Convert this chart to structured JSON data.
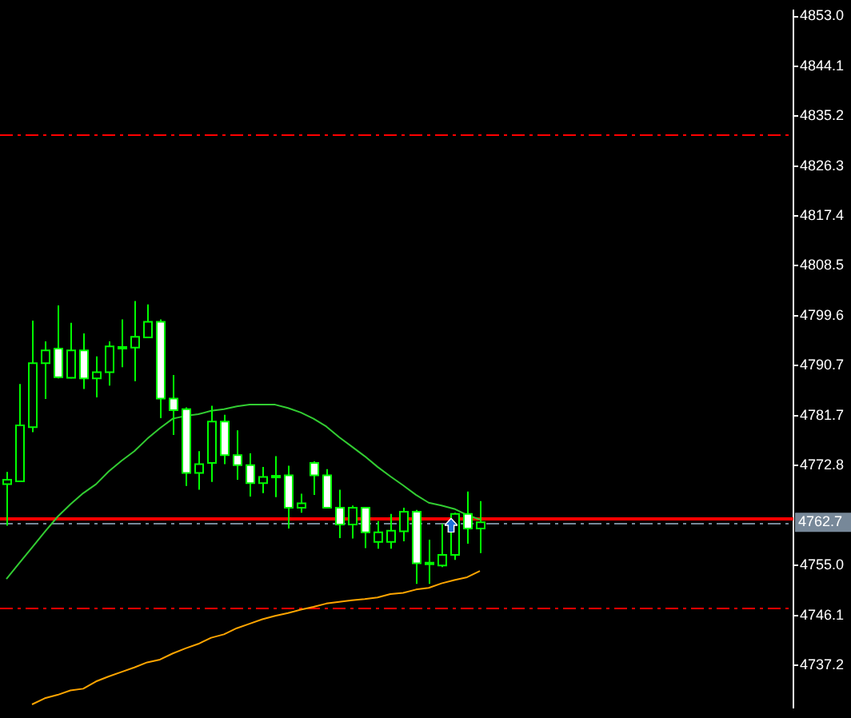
{
  "chart_data": {
    "type": "candlestick",
    "color": "#00ff00",
    "colors": [
      "#000000",
      "#000000",
      "#000000",
      "#000000",
      "#ffffff",
      "#000000",
      "#ffffff",
      "#000000",
      "#000000",
      "#ffffff",
      "#000000",
      "#000000",
      "#ffffff",
      "#ffffff",
      "#ffffff",
      "#000000",
      "#000000",
      "#ffffff",
      "#ffffff",
      "#ffffff",
      "#000000",
      "#000000",
      "#ffffff",
      "#000000",
      "#ffffff",
      "#ffffff",
      "#ffffff",
      "#000000",
      "#ffffff",
      "#000000",
      "#000000",
      "#000000",
      "#ffffff",
      "#000000",
      "#000000",
      "#000000",
      "#ffffff",
      "#000000",
      null,
      null,
      null,
      null,
      null,
      null,
      null,
      null,
      null,
      null,
      null,
      null,
      null,
      null,
      null,
      null,
      null,
      null,
      null,
      null,
      null,
      null,
      null,
      null
    ],
    "categories": [
      null,
      null,
      null,
      null,
      null,
      null,
      null,
      null,
      null,
      null,
      null,
      null,
      null,
      null,
      null,
      null,
      null,
      null,
      null,
      null,
      null,
      null,
      null,
      null,
      null,
      null,
      null,
      null,
      null,
      null,
      null,
      null,
      null,
      null,
      null,
      null,
      null,
      null,
      null,
      null,
      null,
      null,
      null,
      null,
      null,
      null,
      null,
      null,
      null,
      null,
      null,
      null,
      null,
      null,
      null,
      null,
      null,
      null,
      null,
      null,
      null,
      null
    ],
    "ohlc": [
      [
        4769.5,
        4771.7,
        4762.1,
        4770.3
      ],
      [
        4770.0,
        4787.4,
        4770.0,
        4780.0
      ],
      [
        4779.7,
        4798.7,
        4778.8,
        4791.1
      ],
      [
        4791.1,
        4795.0,
        4784.7,
        4793.4
      ],
      [
        4793.7,
        4801.4,
        4788.4,
        4788.6
      ],
      [
        4788.5,
        4798.3,
        4788.4,
        4793.4
      ],
      [
        4793.4,
        4796.4,
        4786.5,
        4788.4
      ],
      [
        4788.4,
        4792.3,
        4785.0,
        4789.5
      ],
      [
        4789.5,
        4795.0,
        4787.1,
        4794.1
      ],
      [
        4794.0,
        4798.9,
        4790.4,
        4793.8
      ],
      [
        4793.9,
        4802.2,
        4787.9,
        4795.8
      ],
      [
        4795.7,
        4801.6,
        4795.7,
        4798.5
      ],
      [
        4798.5,
        4798.9,
        4781.3,
        4784.8
      ],
      [
        4784.8,
        4789.0,
        4778.3,
        4782.7
      ],
      [
        4782.9,
        4783.2,
        4769.2,
        4771.5
      ],
      [
        4771.5,
        4775.4,
        4768.5,
        4773.1
      ],
      [
        4773.3,
        4783.5,
        4769.9,
        4780.7
      ],
      [
        4780.7,
        4781.9,
        4773.1,
        4774.7
      ],
      [
        4774.7,
        4779.1,
        4770.3,
        4772.9
      ],
      [
        4772.9,
        4775.0,
        4767.3,
        4769.7
      ],
      [
        4769.7,
        4772.6,
        4767.9,
        4770.8
      ],
      [
        4770.9,
        4774.5,
        4767.2,
        4771.0
      ],
      [
        4771.1,
        4772.8,
        4761.6,
        4765.3
      ],
      [
        4765.3,
        4767.8,
        4764.4,
        4766.1
      ],
      [
        4773.3,
        4773.6,
        4767.6,
        4771.1
      ],
      [
        4771.1,
        4772.2,
        4765.3,
        4765.3
      ],
      [
        4765.3,
        4768.5,
        4759.9,
        4762.3
      ],
      [
        4762.3,
        4765.7,
        4759.8,
        4765.3
      ],
      [
        4765.3,
        4765.3,
        4758.1,
        4760.9
      ],
      [
        4759.2,
        4762.9,
        4758.0,
        4760.9
      ],
      [
        4759.2,
        4764.2,
        4758.0,
        4761.2
      ],
      [
        4761.1,
        4765.3,
        4759.3,
        4764.6
      ],
      [
        4764.6,
        4764.9,
        4751.7,
        4755.4
      ],
      [
        4755.4,
        4759.6,
        4751.7,
        4755.5
      ],
      [
        4755.0,
        4762.4,
        4754.7,
        4756.9
      ],
      [
        4756.9,
        4764.4,
        4756.0,
        4764.2
      ],
      [
        4764.2,
        4768.2,
        4758.9,
        4761.6
      ],
      [
        4761.6,
        4766.5,
        4757.2,
        4762.7
      ],
      null,
      null,
      null,
      null,
      null,
      null,
      null,
      null,
      null,
      null,
      null,
      null,
      null,
      null,
      null,
      null,
      null,
      null,
      null,
      null,
      null,
      null,
      null,
      null
    ],
    "series": [
      {
        "type": "line",
        "color": "#32cd32",
        "values": [
          4752.6,
          4755.4,
          4758.2,
          4761.0,
          4763.7,
          4765.9,
          4767.9,
          4769.5,
          4771.8,
          4773.7,
          4775.4,
          4777.6,
          4779.5,
          4781.2,
          4781.7,
          4782.0,
          4782.6,
          4782.9,
          4783.4,
          4783.7,
          4783.7,
          4783.7,
          4783.1,
          4782.3,
          4781.2,
          4779.8,
          4777.9,
          4776.2,
          4774.5,
          4772.6,
          4770.9,
          4769.3,
          4767.6,
          4766.2,
          4765.7,
          4765.1,
          4764.0,
          4763.2,
          null,
          null,
          null,
          null,
          null,
          null,
          null,
          null,
          null,
          null,
          null,
          null,
          null,
          null,
          null,
          null,
          null,
          null,
          null,
          null,
          null,
          null,
          null,
          null
        ]
      },
      {
        "type": "line",
        "color": "#ffa500",
        "values": [
          null,
          null,
          4730.2,
          4731.3,
          4731.9,
          4732.7,
          4733.0,
          4734.3,
          4735.2,
          4736.0,
          4736.8,
          4737.7,
          4738.2,
          4739.3,
          4740.2,
          4741.0,
          4742.1,
          4742.7,
          4743.8,
          4744.6,
          4745.4,
          4746.0,
          4746.5,
          4747.1,
          4747.6,
          4748.2,
          4748.5,
          4748.8,
          4749.0,
          4749.3,
          4749.9,
          4750.1,
          4750.7,
          4751.0,
          4751.8,
          4752.4,
          4752.9,
          4754.0,
          null,
          null,
          null,
          null,
          null,
          null,
          null,
          null,
          null,
          null,
          null,
          null,
          null,
          null,
          null,
          null,
          null,
          null,
          null,
          null,
          null,
          null,
          null,
          null
        ]
      }
    ],
    "ylim": [
      4729.6,
      4854.1
    ],
    "yticks": [
      {
        "value": 4853,
        "label": "4853.0"
      },
      4844.1,
      4835.2,
      4826.3,
      4817.4,
      4808.5,
      4799.6,
      4790.7,
      4781.7,
      4772.8,
      {
        "value": 4755,
        "label": "4755.0"
      },
      4746.1,
      4737.2
    ],
    "ref_lines": [
      {
        "axis": "y",
        "value": 4831.9,
        "color": "#ff0000",
        "line_style": "dashed"
      },
      {
        "axis": "y",
        "value": 4747.4,
        "color": "#ff0000",
        "line_style": "dashed"
      },
      {
        "axis": "y",
        "value": 4763.4,
        "color": "#ff0000",
        "line_style": "solid"
      },
      {
        "axis": "y",
        "value": 4762.7,
        "label": "4762.7",
        "color": "#778899",
        "line_style": "dashed"
      }
    ],
    "tick_labels": "y"
  }
}
